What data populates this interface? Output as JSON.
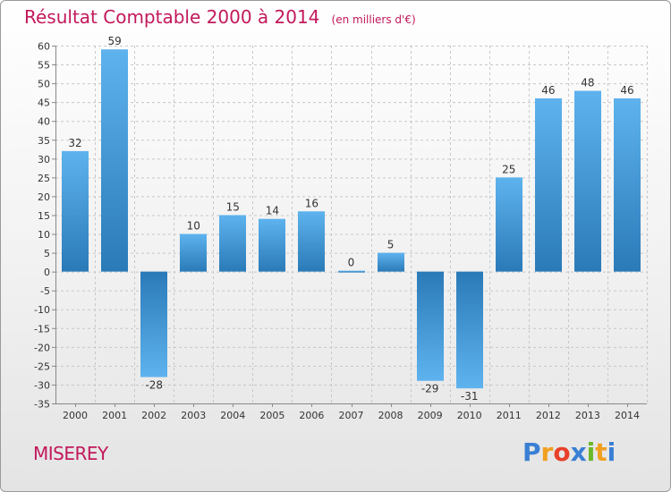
{
  "header": {
    "title": "Résultat Comptable 2000 à 2014",
    "subtitle": "(en milliers d'€)"
  },
  "footer": {
    "commune": "MISEREY",
    "brand_letters": [
      "P",
      "r",
      "o",
      "x",
      "i",
      "t",
      "i"
    ]
  },
  "colors": {
    "accent": "#c2185b",
    "bar_light": "#5eb3ee",
    "bar_dark": "#2a7ab8",
    "grid": "#c8c8c8",
    "brand": [
      "#3a7fd4",
      "#f0a020",
      "#e8402a",
      "#3a7fd4",
      "#6bb82a",
      "#f0a020",
      "#3a7fd4"
    ]
  },
  "chart_data": {
    "type": "bar",
    "title": "Résultat Comptable 2000 à 2014",
    "unit": "(en milliers d'€)",
    "categories": [
      "2000",
      "2001",
      "2002",
      "2003",
      "2004",
      "2005",
      "2006",
      "2007",
      "2008",
      "2009",
      "2010",
      "2011",
      "2012",
      "2013",
      "2014"
    ],
    "values": [
      32,
      59,
      -28,
      10,
      15,
      14,
      16,
      0,
      5,
      -29,
      -31,
      25,
      46,
      48,
      46
    ],
    "ylim": [
      -35,
      60
    ],
    "yticks": [
      60,
      55,
      50,
      45,
      40,
      35,
      30,
      25,
      20,
      15,
      10,
      5,
      0,
      -5,
      -10,
      -15,
      -20,
      -25,
      -30,
      -35
    ],
    "grid": true,
    "xlabel": "",
    "ylabel": ""
  }
}
